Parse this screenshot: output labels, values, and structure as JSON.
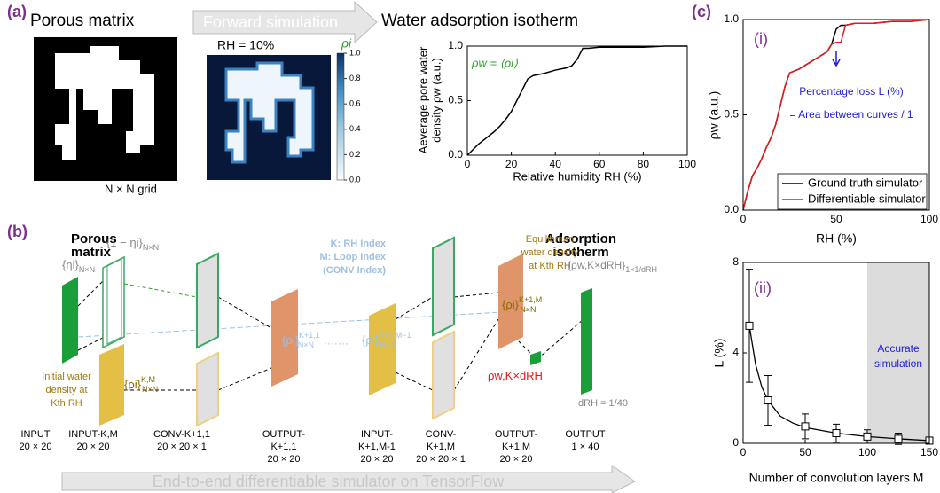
{
  "panel_labels": [
    "(a)",
    "(b)",
    "(c)"
  ],
  "panel_a": {
    "porous_title": "Porous matrix",
    "grid_label": "N × N grid",
    "arrow_text": "Forward simulation",
    "rh_label": "RH = 10%",
    "colorbar": {
      "title": "ρi",
      "ticks": [
        {
          "value": 0,
          "label": "0.0"
        },
        0.2,
        0.4,
        0.6,
        0.8,
        {
          "value": 1,
          "label": "1.0"
        }
      ],
      "lim": [
        0,
        1
      ]
    }
  },
  "chart_data": [
    {
      "type": "line",
      "title": "Water adsorption isotherm",
      "xlabel": "Relative humidity RH (%)",
      "ylabel_lines": [
        "Aeverage pore water",
        "density ρw (a.u.)"
      ],
      "annotation": "ρw = ⟨ρi⟩",
      "x": [
        0,
        2.5,
        5,
        7.5,
        10,
        12.5,
        15,
        17.5,
        20,
        22.5,
        25,
        27.5,
        30,
        35,
        40,
        45,
        47.5,
        50,
        52.5,
        55,
        60,
        70,
        80,
        90,
        100
      ],
      "series": [
        {
          "color": "#000000",
          "values": [
            0,
            0.05,
            0.1,
            0.14,
            0.18,
            0.22,
            0.27,
            0.33,
            0.4,
            0.5,
            0.6,
            0.7,
            0.73,
            0.75,
            0.78,
            0.8,
            0.82,
            0.88,
            0.98,
            0.98,
            0.99,
            0.99,
            0.99,
            1.0,
            1.0
          ]
        }
      ],
      "xlim": [
        0,
        100
      ],
      "xticks": [
        0,
        20,
        40,
        60,
        80,
        100
      ],
      "ylim": [
        0,
        1
      ],
      "yticks": [
        {
          "value": 0,
          "label": "0.0"
        },
        0.5,
        {
          "value": 1,
          "label": "1.0"
        }
      ]
    },
    {
      "type": "line",
      "panel": "(i)",
      "xlabel": "RH (%)",
      "ylabel": "ρw (a.u.)",
      "annotations": [
        "Percentage loss L (%)",
        "= Area between curves / 1"
      ],
      "x": [
        0,
        2.5,
        5,
        7.5,
        10,
        12.5,
        15,
        17.5,
        20,
        22.5,
        25,
        27.5,
        30,
        35,
        40,
        45,
        47.5,
        50,
        52.5,
        55,
        60,
        70,
        80,
        90,
        100
      ],
      "series": [
        {
          "name": "Ground truth simulator",
          "color": "#000000",
          "values": [
            0,
            0.1,
            0.18,
            0.22,
            0.27,
            0.33,
            0.38,
            0.45,
            0.55,
            0.65,
            0.72,
            0.73,
            0.74,
            0.77,
            0.8,
            0.83,
            0.87,
            0.95,
            0.97,
            0.97,
            0.98,
            0.98,
            0.99,
            0.99,
            1.0
          ]
        },
        {
          "name": "Differentiable simulator",
          "color": "#e41a1c",
          "values": [
            0,
            0.1,
            0.18,
            0.22,
            0.27,
            0.33,
            0.38,
            0.45,
            0.55,
            0.65,
            0.72,
            0.73,
            0.74,
            0.77,
            0.8,
            0.83,
            0.87,
            0.88,
            0.88,
            0.97,
            0.98,
            0.98,
            0.99,
            0.99,
            1.0
          ]
        }
      ],
      "legend": "lower right",
      "xlim": [
        0,
        100
      ],
      "xticks": [
        0,
        50,
        100
      ],
      "ylim": [
        0,
        1
      ],
      "yticks": [
        {
          "value": 0,
          "label": "0.0"
        },
        0.5,
        {
          "value": 1,
          "label": "1.0"
        }
      ]
    },
    {
      "type": "errorbar",
      "panel": "(ii)",
      "xlabel": "Number of convolution layers M",
      "ylabel": "L (%)",
      "shade": [
        100,
        150
      ],
      "shade_label_lines": [
        "Accurate",
        "simulation"
      ],
      "x": [
        5,
        20,
        50,
        75,
        100,
        125,
        150
      ],
      "values": [
        5.2,
        1.9,
        0.75,
        0.45,
        0.3,
        0.2,
        0.12
      ],
      "errors": [
        2.5,
        1.1,
        0.55,
        0.4,
        0.3,
        0.25,
        0.15
      ],
      "fit": {
        "x": [
          5,
          10,
          15,
          20,
          30,
          40,
          50,
          75,
          100,
          125,
          150
        ],
        "values": [
          5.2,
          3.5,
          2.5,
          1.9,
          1.2,
          0.9,
          0.7,
          0.45,
          0.3,
          0.2,
          0.12
        ]
      },
      "xlim": [
        0,
        150
      ],
      "xticks": [
        0,
        50,
        100,
        150
      ],
      "ylim": [
        0,
        8
      ],
      "yticks": [
        0,
        4,
        8
      ]
    }
  ],
  "diagram": {
    "porous_lines": [
      "Porous",
      "matrix"
    ],
    "isotherm_lines": [
      "Adsorption",
      "isotherm"
    ],
    "eta": {
      "base": "{ηi}",
      "sub": "N×N"
    },
    "one_minus_eta": {
      "base": "{1 − ηi}",
      "sub": "N×N"
    },
    "rho_km": {
      "base": "{ρi}",
      "sup": "K,M",
      "sub": "N×N"
    },
    "rho_k1_1": {
      "base": "{ρi}",
      "sup": "K+1,1",
      "sub": "N×N"
    },
    "dots": "·······",
    "rho_k1_m1": {
      "base": "{ρi}",
      "sup": "K+1,M−1",
      "sub": "N×N"
    },
    "rho_k1_m": {
      "base": "{ρi}",
      "sup": "K+1,M",
      "sub": "N×N"
    },
    "rho_w": {
      "base": "ρw,K×dRH"
    },
    "rho_w_set": {
      "base": "{ρw,K×dRH}",
      "sub": "1×1/dRH"
    },
    "drh": "dRH = 1/40",
    "initial_lines": [
      "Initial water",
      "density at",
      "Kth RH"
    ],
    "equilibrium_lines": [
      "Equilibrium",
      "water density",
      "at Kth RH"
    ],
    "index_lines": [
      "K: RH Index",
      "M: Loop Index",
      "(CONV Index)"
    ],
    "stages": [
      [
        "INPUT",
        "20 × 20"
      ],
      [
        "INPUT-K,M",
        "20 × 20"
      ],
      [
        "CONV-K+1,1",
        "20 × 20 × 1"
      ],
      [
        "OUTPUT-",
        "K+1,1",
        "20 × 20"
      ],
      [
        "INPUT-",
        "K+1,M-1",
        "20 × 20"
      ],
      [
        "CONV-",
        "K+1,M",
        "20 × 20 × 1"
      ],
      [
        "OUTPUT-",
        "K+1,M",
        "20 × 20"
      ],
      [
        "OUTPUT",
        "1 × 40"
      ]
    ],
    "bottom_arrow": "End-to-end differentiable simulator on TensorFlow"
  }
}
